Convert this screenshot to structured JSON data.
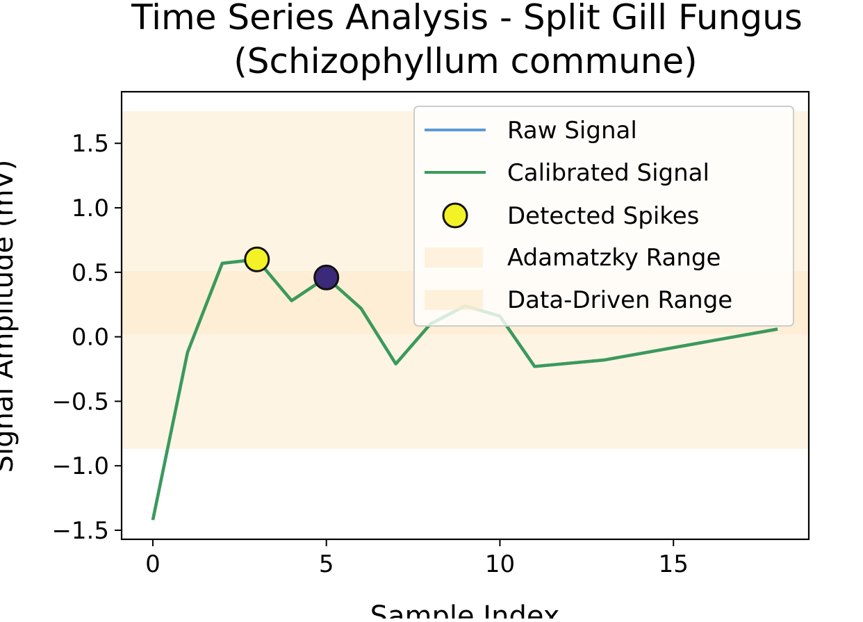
{
  "chart_data": {
    "type": "line",
    "title_line1": "Time Series Analysis - Split Gill Fungus",
    "title_line2": "(Schizophyllum commune)",
    "xlabel": "Sample Index",
    "ylabel": "Signal Amplitude (mV)",
    "xlim": [
      -0.9,
      18.9
    ],
    "ylim": [
      -1.57,
      1.9
    ],
    "xticks": [
      0,
      5,
      10,
      15
    ],
    "xtick_labels": [
      "0",
      "5",
      "10",
      "15"
    ],
    "yticks": [
      1.5,
      1.0,
      0.5,
      0.0,
      -0.5,
      -1.0,
      -1.5
    ],
    "ytick_labels": [
      "1.5",
      "1.0",
      "0.5",
      "0.0",
      "−0.5",
      "−1.0",
      "−1.5"
    ],
    "grid": false,
    "legend_position": "top-right",
    "series": [
      {
        "name": "Raw Signal",
        "color": "#5b9bd5",
        "x": [
          0,
          1,
          2,
          3,
          4,
          5,
          6,
          7,
          8,
          9,
          10,
          11,
          13,
          18
        ],
        "y": [
          -1.42,
          -0.12,
          0.57,
          0.6,
          0.28,
          0.46,
          0.22,
          -0.21,
          0.1,
          0.24,
          0.16,
          -0.23,
          -0.18,
          0.06
        ]
      },
      {
        "name": "Calibrated Signal",
        "color": "#3a9a5a",
        "x": [
          0,
          1,
          2,
          3,
          4,
          5,
          6,
          7,
          8,
          9,
          10,
          11,
          13,
          18
        ],
        "y": [
          -1.42,
          -0.12,
          0.57,
          0.6,
          0.28,
          0.46,
          0.22,
          -0.21,
          0.1,
          0.24,
          0.16,
          -0.23,
          -0.18,
          0.06
        ]
      }
    ],
    "spikes": {
      "name": "Detected Spikes",
      "points": [
        {
          "x": 3,
          "y": 0.6,
          "color": "#f2f226"
        },
        {
          "x": 5,
          "y": 0.46,
          "color": "#3b2a7a"
        }
      ]
    },
    "ranges": [
      {
        "name": "Adamatzky Range",
        "y0": -0.87,
        "y1": 1.75,
        "color": "#fde7c4"
      },
      {
        "name": "Data-Driven Range",
        "y0": 0.02,
        "y1": 0.51,
        "color": "#fde7c4"
      }
    ]
  }
}
